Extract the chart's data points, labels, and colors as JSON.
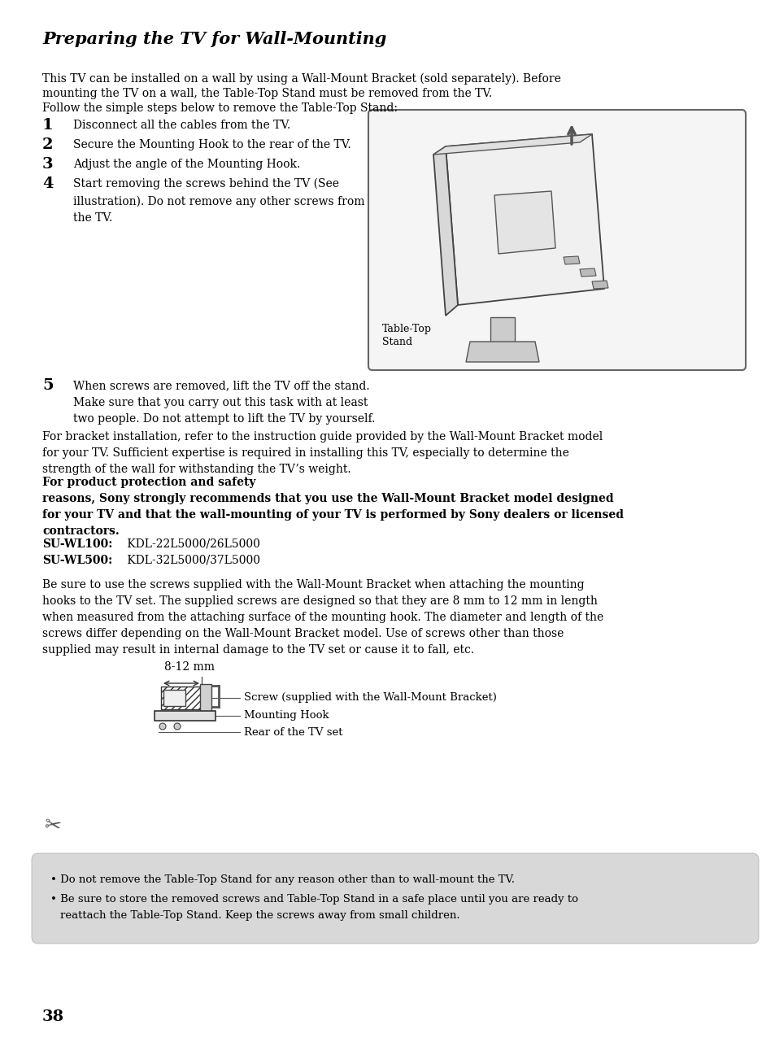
{
  "bg_color": "#ffffff",
  "title": "Preparing the TV for Wall-Mounting",
  "intro_line1": "This TV can be installed on a wall by using a Wall-Mount Bracket (sold separately). Before",
  "intro_line2": "mounting the TV on a wall, the Table-Top Stand must be removed from the TV.",
  "intro_line3": "Follow the simple steps below to remove the Table-Top Stand:",
  "steps": [
    {
      "num": "1",
      "text": "Disconnect all the cables from the TV.",
      "lines": 1
    },
    {
      "num": "2",
      "text": "Secure the Mounting Hook to the rear of the TV.",
      "lines": 1
    },
    {
      "num": "3",
      "text": "Adjust the angle of the Mounting Hook.",
      "lines": 1
    },
    {
      "num": "4",
      "text": "Start removing the screws behind the TV (See\nillustration). Do not remove any other screws from\nthe TV.",
      "lines": 3
    },
    {
      "num": "5",
      "text": "When screws are removed, lift the TV off the stand.\nMake sure that you carry out this task with at least\ntwo people. Do not attempt to lift the TV by yourself.",
      "lines": 3
    }
  ],
  "table_top_label": "Table-Top\nStand",
  "bracket_normal": "For bracket installation, refer to the instruction guide provided by the Wall-Mount Bracket model\nfor your TV. Sufficient expertise is required in installing this TV, especially to determine the\nstrength of the wall for withstanding the TV’s weight. ",
  "bracket_bold": "For product protection and safety\nreasons, Sony strongly recommends that you use the Wall-Mount Bracket model designed\nfor your TV and that the wall-mounting of your TV is performed by Sony dealers or licensed\ncontractors.",
  "model_line1_bold": "SU-WL100:",
  "model_line1_normal": " KDL-22L5000/26L5000",
  "model_line2_bold": "SU-WL500:",
  "model_line2_normal": " KDL-32L5000/37L5000",
  "screw_para": "Be sure to use the screws supplied with the Wall-Mount Bracket when attaching the mounting\nhooks to the TV set. The supplied screws are designed so that they are 8 mm to 12 mm in length\nwhen measured from the attaching surface of the mounting hook. The diameter and length of the\nscrews differ depending on the Wall-Mount Bracket model. Use of screws other than those\nsupplied may result in internal damage to the TV set or cause it to fall, etc.",
  "screw_label": "8-12 mm",
  "label1": "Screw (supplied with the Wall-Mount Bracket)",
  "label2": "Mounting Hook",
  "label3": "Rear of the TV set",
  "note1": "Do not remove the Table-Top Stand for any reason other than to wall-mount the TV.",
  "note2": "Be sure to store the removed screws and Table-Top Stand in a safe place until you are ready to",
  "note3": "reattach the Table-Top Stand. Keep the screws away from small children.",
  "page_num": "38",
  "text_color": "#000000",
  "note_box_color": "#d8d8d8"
}
